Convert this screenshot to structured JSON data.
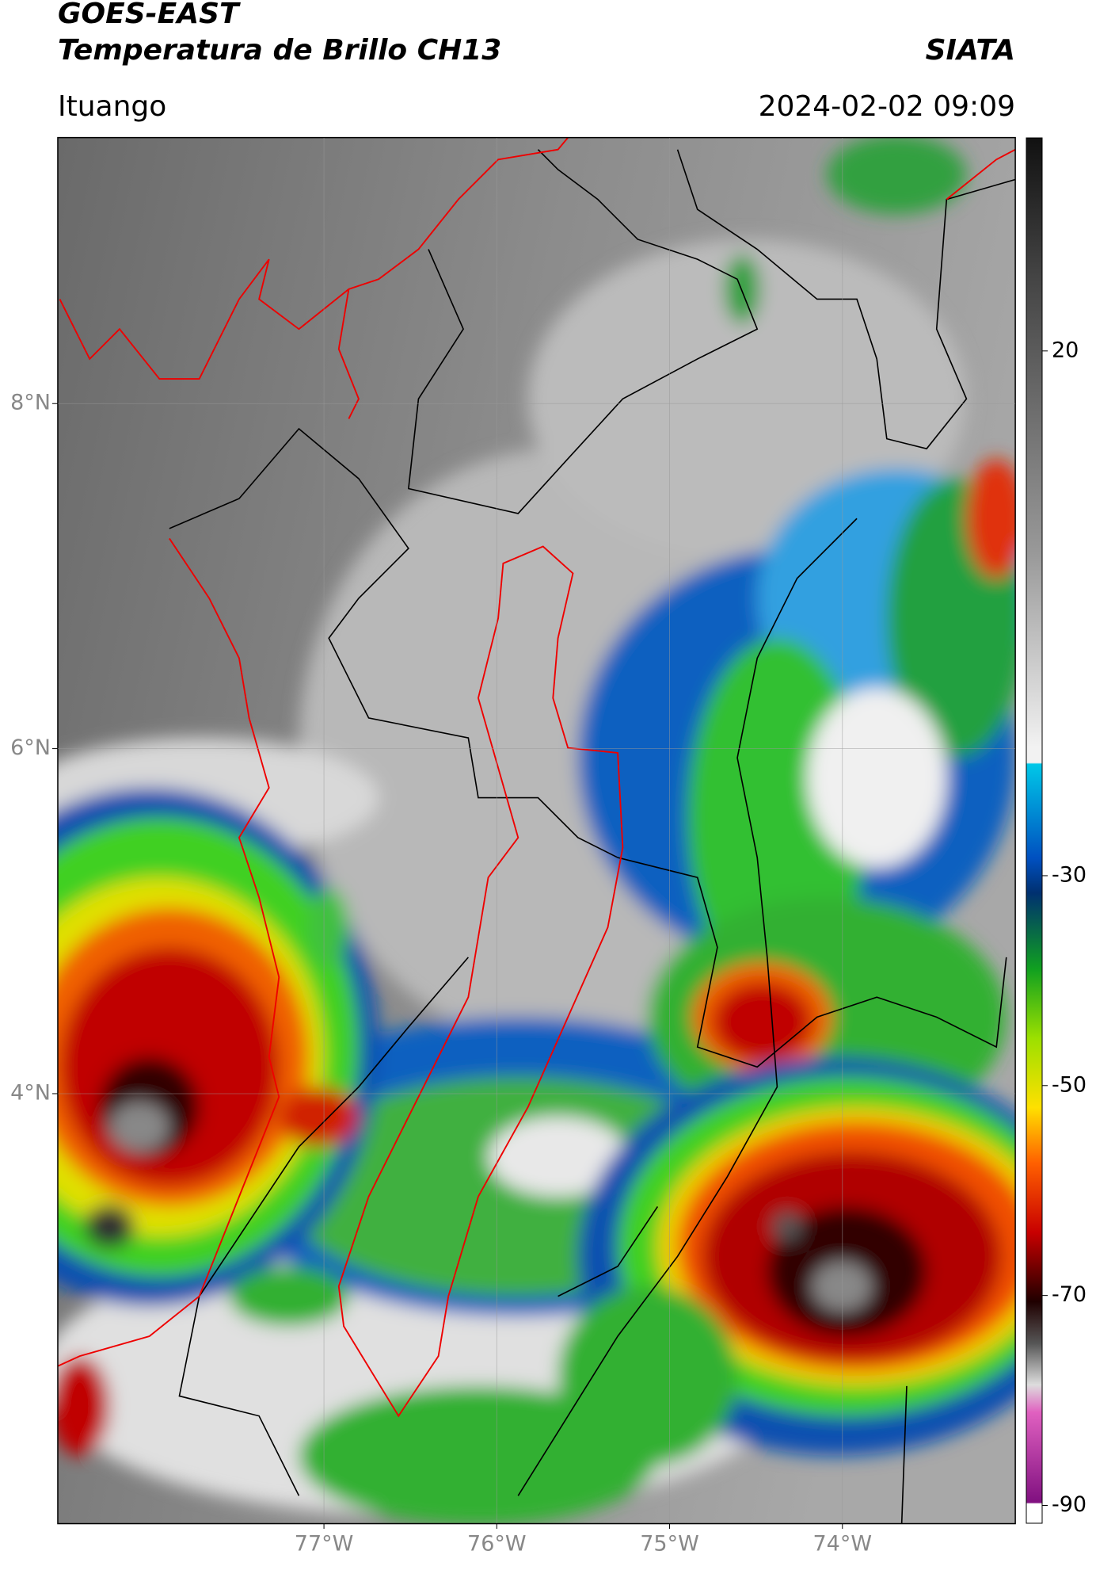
{
  "header": {
    "title": "GOES-EAST",
    "subtitle": "Temperatura de Brillo CH13",
    "agency": "SIATA",
    "location": "Ituango",
    "datetime": "2024-02-02 09:09"
  },
  "map": {
    "lonlim": [
      -78.54,
      -73.0
    ],
    "latlim": [
      1.51,
      9.54
    ],
    "grid": true,
    "lat_ticks": [
      {
        "value": 8,
        "label": "8°N"
      },
      {
        "value": 6,
        "label": "6°N"
      },
      {
        "value": 4,
        "label": "4°N"
      }
    ],
    "lon_ticks": [
      {
        "value": -77,
        "label": "77°W"
      },
      {
        "value": -76,
        "label": "76°W"
      },
      {
        "value": -75,
        "label": "75°W"
      },
      {
        "value": -74,
        "label": "74°W"
      }
    ]
  },
  "colorbar": {
    "lim": [
      -91.7,
      40.3
    ],
    "ticks": [
      20,
      -30,
      -50,
      -70,
      -90
    ]
  }
}
